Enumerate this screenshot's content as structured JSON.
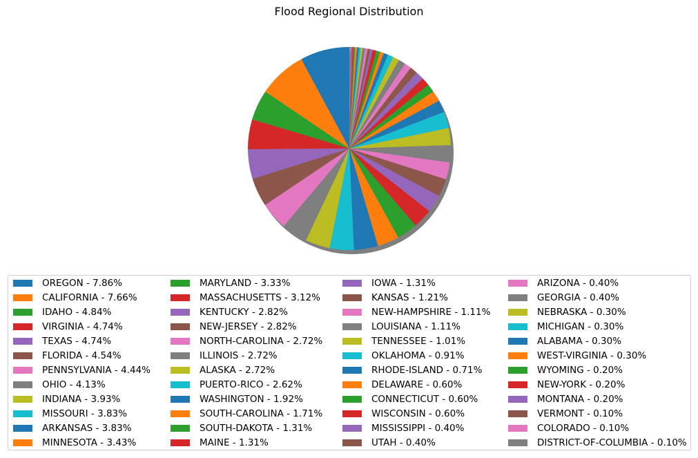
{
  "chart_data": {
    "type": "pie",
    "title": "Flood Regional Distribution",
    "shadow": true,
    "start_angle_deg": 90,
    "direction": "counterclockwise",
    "legend_position": "bottom",
    "legend_columns": 4,
    "colors": [
      "#1f77b4",
      "#ff7f0e",
      "#2ca02c",
      "#d62728",
      "#9467bd",
      "#8c564b",
      "#e377c2",
      "#7f7f7f",
      "#bcbd22",
      "#17becf"
    ],
    "slices": [
      {
        "label": "OREGON - 7.86%",
        "value": 7.86
      },
      {
        "label": "CALIFORNIA - 7.66%",
        "value": 7.66
      },
      {
        "label": "IDAHO - 4.84%",
        "value": 4.84
      },
      {
        "label": "VIRGINIA - 4.74%",
        "value": 4.74
      },
      {
        "label": "TEXAS - 4.74%",
        "value": 4.74
      },
      {
        "label": "FLORIDA - 4.54%",
        "value": 4.54
      },
      {
        "label": "PENNSYLVANIA - 4.44%",
        "value": 4.44
      },
      {
        "label": "OHIO - 4.13%",
        "value": 4.13
      },
      {
        "label": "INDIANA - 3.93%",
        "value": 3.93
      },
      {
        "label": "MISSOURI - 3.83%",
        "value": 3.83
      },
      {
        "label": "ARKANSAS - 3.83%",
        "value": 3.83
      },
      {
        "label": "MINNESOTA - 3.43%",
        "value": 3.43
      },
      {
        "label": "MARYLAND - 3.33%",
        "value": 3.33
      },
      {
        "label": "MASSACHUSETTS - 3.12%",
        "value": 3.12
      },
      {
        "label": "KENTUCKY - 2.82%",
        "value": 2.82
      },
      {
        "label": "NEW-JERSEY - 2.82%",
        "value": 2.82
      },
      {
        "label": "NORTH-CAROLINA - 2.72%",
        "value": 2.72
      },
      {
        "label": "ILLINOIS - 2.72%",
        "value": 2.72
      },
      {
        "label": "ALASKA - 2.72%",
        "value": 2.72
      },
      {
        "label": "PUERTO-RICO - 2.62%",
        "value": 2.62
      },
      {
        "label": "WASHINGTON - 1.92%",
        "value": 1.92
      },
      {
        "label": "SOUTH-CAROLINA - 1.71%",
        "value": 1.71
      },
      {
        "label": "SOUTH-DAKOTA - 1.31%",
        "value": 1.31
      },
      {
        "label": "MAINE - 1.31%",
        "value": 1.31
      },
      {
        "label": "IOWA - 1.31%",
        "value": 1.31
      },
      {
        "label": "KANSAS - 1.21%",
        "value": 1.21
      },
      {
        "label": "NEW-HAMPSHIRE - 1.11%",
        "value": 1.11
      },
      {
        "label": "LOUISIANA - 1.11%",
        "value": 1.11
      },
      {
        "label": "TENNESSEE - 1.01%",
        "value": 1.01
      },
      {
        "label": "OKLAHOMA - 0.91%",
        "value": 0.91
      },
      {
        "label": "RHODE-ISLAND - 0.71%",
        "value": 0.71
      },
      {
        "label": "DELAWARE - 0.60%",
        "value": 0.6
      },
      {
        "label": "CONNECTICUT - 0.60%",
        "value": 0.6
      },
      {
        "label": "WISCONSIN - 0.60%",
        "value": 0.6
      },
      {
        "label": "MISSISSIPPI - 0.40%",
        "value": 0.4
      },
      {
        "label": "UTAH - 0.40%",
        "value": 0.4
      },
      {
        "label": "ARIZONA - 0.40%",
        "value": 0.4
      },
      {
        "label": "GEORGIA - 0.40%",
        "value": 0.4
      },
      {
        "label": "NEBRASKA - 0.30%",
        "value": 0.3
      },
      {
        "label": "MICHIGAN - 0.30%",
        "value": 0.3
      },
      {
        "label": "ALABAMA - 0.30%",
        "value": 0.3
      },
      {
        "label": "WEST-VIRGINIA - 0.30%",
        "value": 0.3
      },
      {
        "label": "WYOMING - 0.20%",
        "value": 0.2
      },
      {
        "label": "NEW-YORK - 0.20%",
        "value": 0.2
      },
      {
        "label": "MONTANA - 0.20%",
        "value": 0.2
      },
      {
        "label": "VERMONT - 0.10%",
        "value": 0.1
      },
      {
        "label": "COLORADO - 0.10%",
        "value": 0.1
      },
      {
        "label": "DISTRICT-OF-COLUMBIA - 0.10%",
        "value": 0.1
      }
    ]
  }
}
